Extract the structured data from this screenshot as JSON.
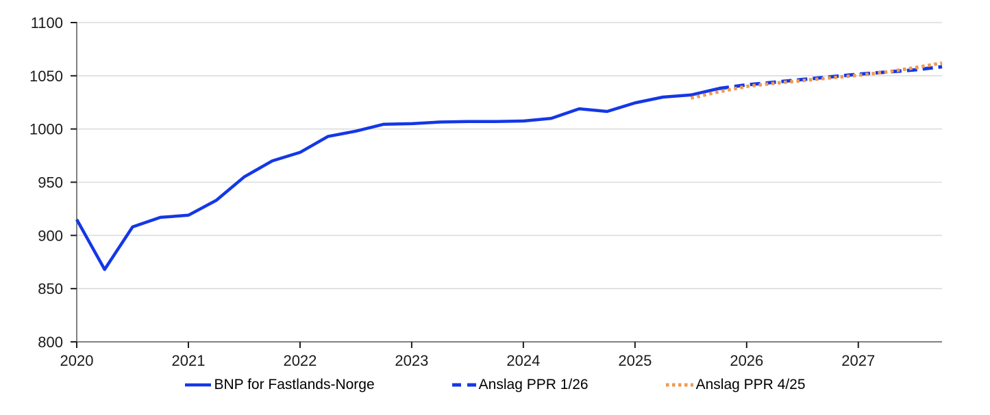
{
  "colors": {
    "line_blue": "#1437e6",
    "line_orange": "#ec9b55",
    "grid": "#dcdcdc",
    "axis": "#808080",
    "tick": "#1a1a1a",
    "label": "#1a1a1a",
    "background": "#ffffff"
  },
  "legend": {
    "items": [
      {
        "label": "BNP for Fastlands-Norge",
        "marker": "solid-line",
        "color": "#1437e6"
      },
      {
        "label": "Anslag PPR 1/26",
        "marker": "dashed-line",
        "color": "#1437e6"
      },
      {
        "label": "Anslag PPR 4/25",
        "marker": "dotted-line",
        "color": "#ec9b55"
      }
    ]
  },
  "chart_data": {
    "type": "line",
    "title": "",
    "xlabel": "",
    "ylabel": "",
    "xlim": [
      2020,
      2027.75
    ],
    "ylim": [
      800,
      1100
    ],
    "x_ticks": [
      2020,
      2021,
      2022,
      2023,
      2024,
      2025,
      2026,
      2027
    ],
    "y_ticks": [
      800,
      850,
      900,
      950,
      1000,
      1050,
      1100
    ],
    "grid": "horizontal",
    "legend_position": "bottom",
    "series": [
      {
        "name": "BNP for Fastlands-Norge",
        "style": "solid",
        "color": "#1437e6",
        "x": [
          2020.0,
          2020.25,
          2020.5,
          2020.75,
          2021.0,
          2021.25,
          2021.5,
          2021.75,
          2022.0,
          2022.25,
          2022.5,
          2022.75,
          2023.0,
          2023.25,
          2023.5,
          2023.75,
          2024.0,
          2024.25,
          2024.5,
          2024.75,
          2025.0,
          2025.25,
          2025.5,
          2025.75
        ],
        "values": [
          915,
          868,
          908,
          917,
          919,
          933,
          955,
          970,
          978,
          993,
          998,
          1004.5,
          1005,
          1006.5,
          1007,
          1007,
          1007.5,
          1010,
          1019,
          1016.5,
          1024.5,
          1030,
          1032,
          1038
        ]
      },
      {
        "name": "Anslag PPR 1/26",
        "style": "dashed",
        "color": "#1437e6",
        "x": [
          2025.75,
          2026.0,
          2026.25,
          2026.5,
          2026.75,
          2027.0,
          2027.25,
          2027.5,
          2027.75
        ],
        "values": [
          1038,
          1041.5,
          1044,
          1046.5,
          1049,
          1051.5,
          1053.5,
          1055.5,
          1058.5
        ]
      },
      {
        "name": "Anslag PPR 4/25",
        "style": "dotted",
        "color": "#ec9b55",
        "x": [
          2025.5,
          2025.75,
          2026.0,
          2026.25,
          2026.5,
          2026.75,
          2027.0,
          2027.25,
          2027.5,
          2027.75
        ],
        "values": [
          1029,
          1035,
          1040,
          1043,
          1045.5,
          1048,
          1050.5,
          1053.5,
          1057.5,
          1062
        ]
      }
    ]
  }
}
